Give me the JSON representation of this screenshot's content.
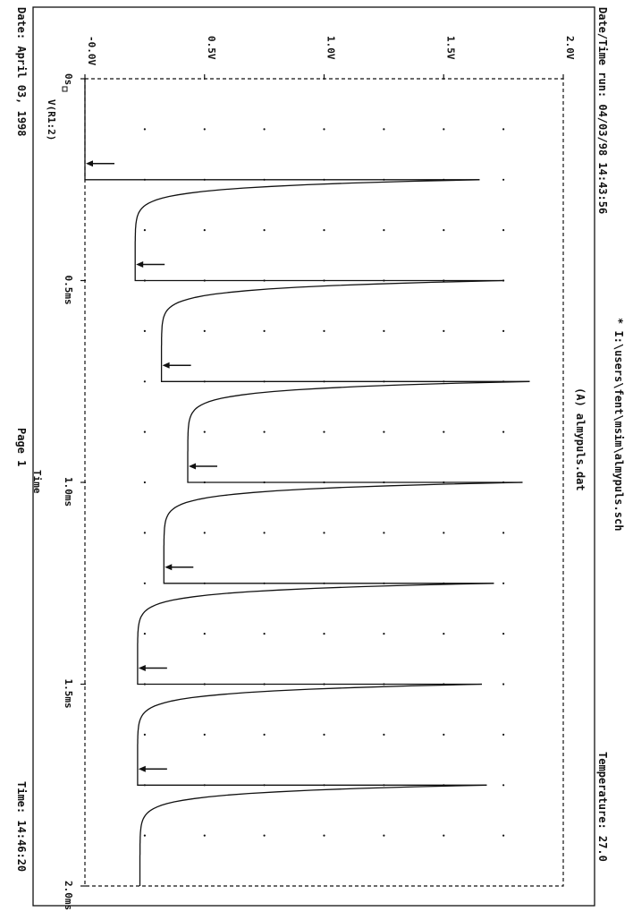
{
  "header": {
    "datetime_run": "Date/Time run: 04/03/98 14:43:56",
    "temperature": "Temperature: 27.0",
    "schematic": "* I:\\users\\fent\\msim\\almypuls.sch",
    "datafile": "(A) almypuls.dat"
  },
  "footer": {
    "date": "Date: April 03, 1998",
    "page": "Page 1",
    "time": "Time: 14:46:20"
  },
  "chart_data": {
    "type": "line",
    "xlabel": "Time",
    "ylabel": "",
    "xlim": [
      0,
      2.0
    ],
    "ylim": [
      0,
      2.0
    ],
    "x_ticks": [
      0,
      0.5,
      1.0,
      1.5,
      2.0
    ],
    "x_tick_labels": [
      "0s",
      "0.5ms",
      "1.0ms",
      "1.5ms",
      "2.0ms"
    ],
    "y_ticks": [
      0,
      0.5,
      1.0,
      1.5,
      2.0
    ],
    "y_tick_labels": [
      "-0.0V",
      "0.5V",
      "1.0V",
      "1.5V",
      "2.0V"
    ],
    "grid": "dotted",
    "legend": {
      "position": "bottom-left",
      "marker": "square",
      "entries": [
        "V(R1:2)"
      ]
    },
    "series": [
      {
        "name": "V(R1:2)",
        "pulse_period_ms": 0.25,
        "pulses": [
          {
            "start_ms": 0.0,
            "peak_v": 0.0,
            "floor_v": 0.0,
            "reset_v": 1.65
          },
          {
            "start_ms": 0.25,
            "peak_v": 1.65,
            "floor_v": 0.21,
            "reset_v": 1.75
          },
          {
            "start_ms": 0.5,
            "peak_v": 1.75,
            "floor_v": 0.32,
            "reset_v": 1.86
          },
          {
            "start_ms": 0.75,
            "peak_v": 1.86,
            "floor_v": 0.43,
            "reset_v": 1.83
          },
          {
            "start_ms": 1.0,
            "peak_v": 1.83,
            "floor_v": 0.33,
            "reset_v": 1.71
          },
          {
            "start_ms": 1.25,
            "peak_v": 1.71,
            "floor_v": 0.22,
            "reset_v": 1.66
          },
          {
            "start_ms": 1.5,
            "peak_v": 1.66,
            "floor_v": 0.22,
            "reset_v": 1.68
          },
          {
            "start_ms": 1.75,
            "peak_v": 1.68,
            "floor_v": 0.23,
            "reset_v": null
          }
        ]
      }
    ],
    "annotations": {
      "type": "arrow",
      "points": [
        {
          "x_ms": 0.21,
          "v": 0.0
        },
        {
          "x_ms": 0.46,
          "v": 0.21
        },
        {
          "x_ms": 0.71,
          "v": 0.32
        },
        {
          "x_ms": 0.96,
          "v": 0.43
        },
        {
          "x_ms": 1.21,
          "v": 0.33
        },
        {
          "x_ms": 1.46,
          "v": 0.22
        },
        {
          "x_ms": 1.71,
          "v": 0.22
        }
      ]
    }
  }
}
